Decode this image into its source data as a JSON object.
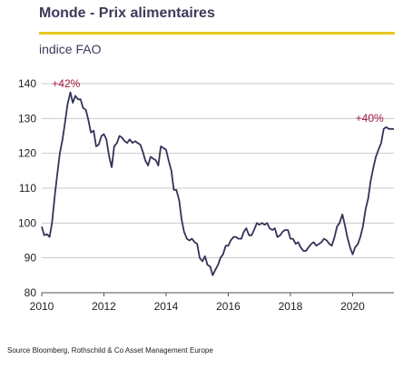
{
  "header": {
    "title": "Monde - Prix alimentaires",
    "unit_label": "indice FAO",
    "rule_color": "#e8c920"
  },
  "source": "Source Bloomberg, Rothschild & Co Asset Management Europe",
  "chart_data": {
    "type": "line",
    "title": "Monde - Prix alimentaires",
    "xlabel": "",
    "ylabel": "indice FAO",
    "xlim": [
      2010,
      2021.33
    ],
    "ylim": [
      80,
      140
    ],
    "xticks": [
      2010,
      2012,
      2014,
      2016,
      2018,
      2020
    ],
    "yticks": [
      80,
      90,
      100,
      110,
      120,
      130,
      140
    ],
    "grid": true,
    "line_color": "#33335a",
    "annotation_color": "#a3173f",
    "series": [
      {
        "x": [
          2010.0,
          2010.08,
          2010.17,
          2010.25,
          2010.33,
          2010.42,
          2010.5,
          2010.58,
          2010.67,
          2010.75,
          2010.83,
          2010.92,
          2011.0,
          2011.08,
          2011.17,
          2011.25,
          2011.33,
          2011.42,
          2011.5,
          2011.58,
          2011.67,
          2011.75,
          2011.83,
          2011.92,
          2012.0,
          2012.08,
          2012.17,
          2012.25,
          2012.33,
          2012.42,
          2012.5,
          2012.58,
          2012.67,
          2012.75,
          2012.83,
          2012.92,
          2013.0,
          2013.08,
          2013.17,
          2013.25,
          2013.33,
          2013.42,
          2013.5,
          2013.58,
          2013.67,
          2013.75,
          2013.83,
          2013.92,
          2014.0,
          2014.08,
          2014.17,
          2014.25,
          2014.33,
          2014.42,
          2014.5,
          2014.58,
          2014.67,
          2014.75,
          2014.83,
          2014.92,
          2015.0,
          2015.08,
          2015.17,
          2015.25,
          2015.33,
          2015.42,
          2015.5,
          2015.58,
          2015.67,
          2015.75,
          2015.83,
          2015.92,
          2016.0,
          2016.08,
          2016.17,
          2016.25,
          2016.33,
          2016.42,
          2016.5,
          2016.58,
          2016.67,
          2016.75,
          2016.83,
          2016.92,
          2017.0,
          2017.08,
          2017.17,
          2017.25,
          2017.33,
          2017.42,
          2017.5,
          2017.58,
          2017.67,
          2017.75,
          2017.83,
          2017.92,
          2018.0,
          2018.08,
          2018.17,
          2018.25,
          2018.33,
          2018.42,
          2018.5,
          2018.58,
          2018.67,
          2018.75,
          2018.83,
          2018.92,
          2019.0,
          2019.08,
          2019.17,
          2019.25,
          2019.33,
          2019.42,
          2019.5,
          2019.58,
          2019.67,
          2019.75,
          2019.83,
          2019.92,
          2020.0,
          2020.08,
          2020.17,
          2020.25,
          2020.33,
          2020.42,
          2020.5,
          2020.58,
          2020.67,
          2020.75,
          2020.83,
          2020.92,
          2021.0,
          2021.08,
          2021.17,
          2021.25,
          2021.33
        ],
        "y": [
          99,
          96.5,
          96.8,
          96,
          100,
          108,
          114,
          120,
          124,
          129,
          134,
          137.5,
          134.5,
          136.5,
          135.5,
          135.5,
          133,
          132.5,
          129.5,
          126,
          126.5,
          122,
          122.5,
          125,
          125.5,
          124,
          119,
          116,
          122,
          123,
          125,
          124.5,
          123.5,
          123,
          124,
          123,
          123.5,
          123,
          122.5,
          120.5,
          118,
          116.5,
          119,
          118.5,
          118,
          116.5,
          122,
          121.5,
          121,
          118,
          115,
          109.5,
          109.5,
          106.5,
          101,
          97.5,
          95.5,
          95,
          95.5,
          94.5,
          94,
          90,
          89,
          90.5,
          88,
          87.5,
          85,
          86.5,
          88,
          90,
          91,
          93.5,
          93.5,
          95,
          96,
          96,
          95.5,
          95.5,
          97.5,
          98.5,
          96.5,
          96.5,
          98,
          100,
          99.5,
          100,
          99.5,
          100,
          98.5,
          98,
          98.5,
          96,
          96.5,
          97.5,
          98,
          98,
          95.5,
          95.5,
          94,
          94.5,
          93,
          92,
          92,
          93,
          94,
          94.5,
          93.5,
          94,
          94.5,
          95.5,
          95,
          94,
          93.5,
          96,
          99,
          100,
          102.5,
          99.5,
          96,
          93,
          91,
          93,
          94,
          96,
          99,
          104,
          107,
          112,
          116,
          119,
          121,
          123,
          127,
          127.5,
          127,
          127,
          127
        ]
      }
    ],
    "annotations": [
      {
        "text": "+42%",
        "x": 2010.33,
        "y": 139
      },
      {
        "text": "+40%",
        "x": 2021.0,
        "y": 129
      }
    ]
  }
}
